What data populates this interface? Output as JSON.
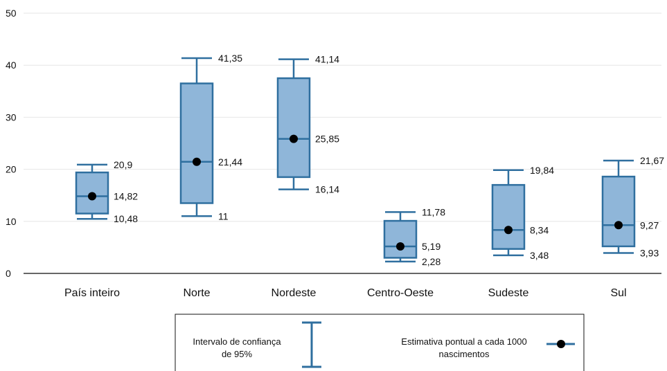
{
  "chart_data": {
    "type": "boxplot",
    "ylim": [
      0,
      50
    ],
    "yticks": [
      0,
      10,
      20,
      30,
      40,
      50
    ],
    "grid": "horizontal",
    "categories": [
      "País inteiro",
      "Norte",
      "Nordeste",
      "Centro-Oeste",
      "Sudeste",
      "Sul"
    ],
    "series": [
      {
        "category": "País inteiro",
        "ci_low": 10.48,
        "q1": 11.5,
        "estimate": 14.82,
        "q3": 19.4,
        "ci_high": 20.9,
        "labels": {
          "high": "20,9",
          "mid": "14,82",
          "low": "10,48"
        }
      },
      {
        "category": "Norte",
        "ci_low": 11,
        "q1": 13.5,
        "estimate": 21.44,
        "q3": 36.5,
        "ci_high": 41.35,
        "labels": {
          "high": "41,35",
          "mid": "21,44",
          "low": "11"
        }
      },
      {
        "category": "Nordeste",
        "ci_low": 16.14,
        "q1": 18.5,
        "estimate": 25.85,
        "q3": 37.5,
        "ci_high": 41.14,
        "labels": {
          "high": "41,14",
          "mid": "25,85",
          "low": "16,14"
        }
      },
      {
        "category": "Centro-Oeste",
        "ci_low": 2.28,
        "q1": 3.0,
        "estimate": 5.19,
        "q3": 10.1,
        "ci_high": 11.78,
        "labels": {
          "high": "11,78",
          "mid": "5,19",
          "low": "2,28"
        }
      },
      {
        "category": "Sudeste",
        "ci_low": 3.48,
        "q1": 4.7,
        "estimate": 8.34,
        "q3": 17.0,
        "ci_high": 19.84,
        "labels": {
          "high": "19,84",
          "mid": "8,34",
          "low": "3,48"
        }
      },
      {
        "category": "Sul",
        "ci_low": 3.93,
        "q1": 5.2,
        "estimate": 9.27,
        "q3": 18.6,
        "ci_high": 21.67,
        "labels": {
          "high": "21,67",
          "mid": "9,27",
          "low": "3,93"
        }
      }
    ],
    "legend": {
      "ci_label_line1": "Intervalo de confiança",
      "ci_label_line2": "de 95%",
      "point_label_line1": "Estimativa pontual a cada 1000",
      "point_label_line2": "nascimentos"
    },
    "colors": {
      "box_fill": "#8fb6d9",
      "box_stroke": "#2f6f9f",
      "point": "#000000",
      "grid": "#e6e6e6",
      "axis": "#333333"
    }
  }
}
